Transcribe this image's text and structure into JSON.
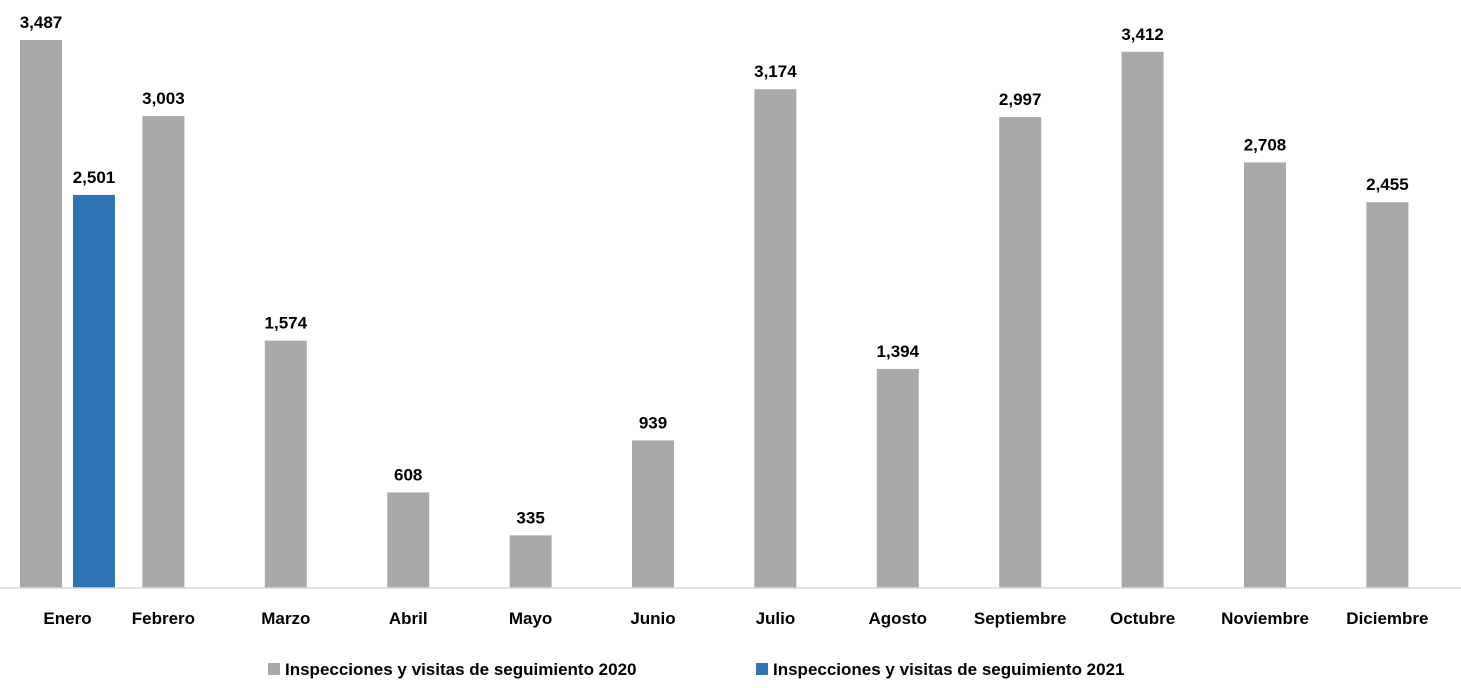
{
  "chart_data": {
    "type": "bar",
    "title": "",
    "xlabel": "",
    "ylabel": "",
    "ylim": [
      0,
      3487
    ],
    "grid": false,
    "legend_position": "bottom",
    "categories": [
      "Enero",
      "Febrero",
      "Marzo",
      "Abril",
      "Mayo",
      "Junio",
      "Julio",
      "Agosto",
      "Septiembre",
      "Octubre",
      "Noviembre",
      "Diciembre"
    ],
    "series": [
      {
        "name": "Inspecciones y visitas de seguimiento 2020",
        "color": "#aba9a8",
        "values": [
          3487,
          3003,
          1574,
          608,
          335,
          939,
          3174,
          1394,
          2997,
          3412,
          2708,
          2455
        ],
        "labels": [
          "3,487",
          "3,003",
          "1,574",
          "608",
          "335",
          "939",
          "3,174",
          "1,394",
          "2,997",
          "3,412",
          "2,708",
          "2,455"
        ]
      },
      {
        "name": "Inspecciones y visitas de seguimiento 2021",
        "color": "#2e75b6",
        "values": [
          2501,
          null,
          null,
          null,
          null,
          null,
          null,
          null,
          null,
          null,
          null,
          null
        ],
        "labels": [
          "2,501",
          "",
          "",
          "",
          "",
          "",
          "",
          "",
          "",
          "",
          "",
          ""
        ]
      }
    ]
  }
}
